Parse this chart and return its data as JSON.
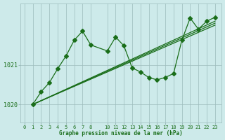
{
  "bg_color": "#cdeaea",
  "grid_color": "#9cbcbc",
  "line_color": "#1a6e1a",
  "xlabel": "Graphe pression niveau de la mer (hPa)",
  "ytick_labels": [
    "1020",
    "1021"
  ],
  "ytick_vals": [
    1020.0,
    1021.0
  ],
  "xticks": [
    0,
    1,
    2,
    3,
    4,
    5,
    6,
    7,
    8,
    10,
    11,
    12,
    13,
    14,
    15,
    16,
    17,
    18,
    19,
    20,
    21,
    22,
    23
  ],
  "xlim": [
    -0.5,
    23.8
  ],
  "ylim": [
    1019.55,
    1022.55
  ],
  "spike_x": [
    1,
    2,
    3,
    4,
    5,
    6,
    7,
    8,
    10,
    11,
    12,
    13,
    14,
    15,
    16,
    17,
    18,
    19,
    20,
    21,
    22,
    23
  ],
  "spike_y": [
    1020.0,
    1020.32,
    1020.55,
    1020.9,
    1021.22,
    1021.62,
    1021.85,
    1021.5,
    1021.35,
    1021.7,
    1021.48,
    1020.92,
    1020.82,
    1020.68,
    1020.62,
    1020.68,
    1020.78,
    1021.62,
    1022.18,
    1021.9,
    1022.1,
    1022.2
  ],
  "trend1_x": [
    1,
    23
  ],
  "trend1_y": [
    1020.0,
    1022.1
  ],
  "trend2_x": [
    1,
    23
  ],
  "trend2_y": [
    1020.0,
    1022.05
  ],
  "trend3_x": [
    1,
    23
  ],
  "trend3_y": [
    1020.0,
    1022.0
  ]
}
